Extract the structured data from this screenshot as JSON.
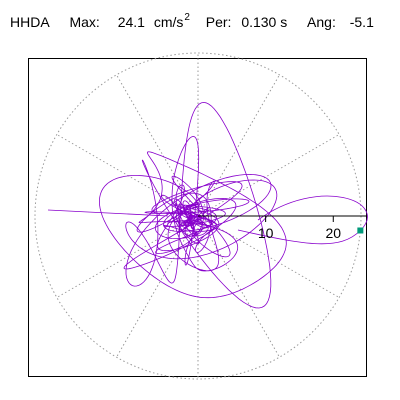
{
  "header": {
    "station": "HHDA",
    "max_label": "Max:",
    "max_value": "24.1",
    "max_unit": "cm/s",
    "max_unit_exp": "2",
    "per_label": "Per:",
    "per_value": "0.130 s",
    "ang_label": "Ang:",
    "ang_value": "-5.1"
  },
  "chart_data": {
    "type": "polar-trace",
    "max_radius": 24.1,
    "angle_deg": -5.1,
    "grid": true,
    "radial_ticks": [
      10,
      20
    ],
    "tick_labels": [
      "10",
      "20"
    ],
    "colors": {
      "trace": "#8800cc",
      "marker": "#00997a",
      "grid": "#999999",
      "axis": "#000000"
    }
  }
}
